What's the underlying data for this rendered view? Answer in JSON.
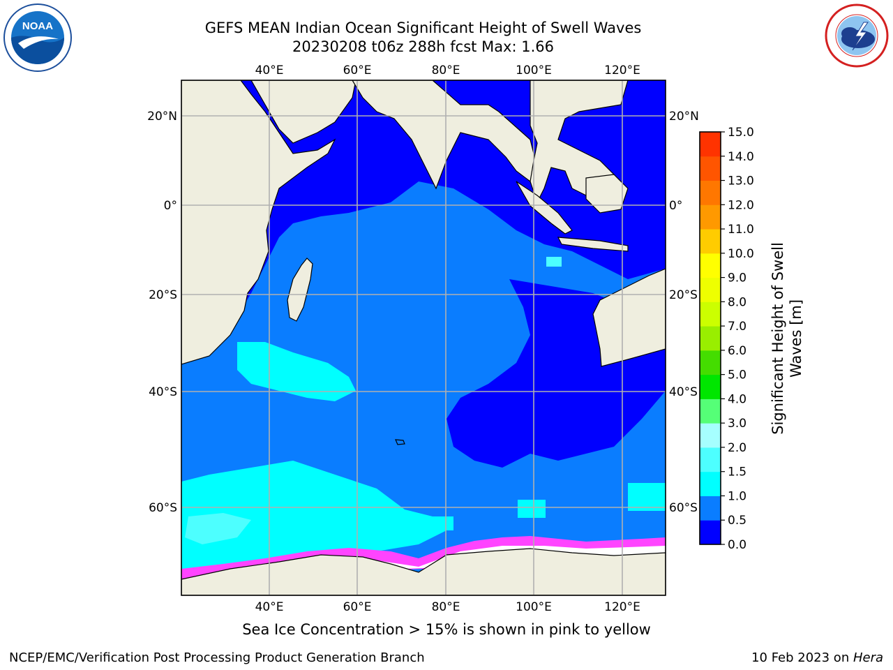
{
  "title": {
    "line1": "GEFS MEAN Indian Ocean Significant Height of Swell Waves",
    "line2": "20230208 t06z 288h fcst   Max: 1.66"
  },
  "map": {
    "lon_ticks": [
      "40°E",
      "60°E",
      "80°E",
      "100°E",
      "120°E"
    ],
    "lat_ticks": [
      "20°N",
      "0°",
      "20°S",
      "40°S",
      "60°S"
    ],
    "extent": {
      "lon": [
        20,
        130
      ],
      "lat": [
        -74,
        27
      ]
    },
    "colors": {
      "land": "#efeedf",
      "ocean_shallow": "#0000ff",
      "ocean_mid": "#0a7dff",
      "ocean_high": "#00ffff",
      "ocean_higher": "#4dffff",
      "ice": "#ff44ff",
      "grid": "#b0b0b0"
    }
  },
  "colorbar": {
    "label_line1": "Significant Height of Swell",
    "label_line2": "Waves [m]",
    "ticks": [
      "0.0",
      "0.5",
      "1.0",
      "1.5",
      "2.0",
      "3.0",
      "4.0",
      "5.0",
      "6.0",
      "7.0",
      "8.0",
      "9.0",
      "10.0",
      "11.0",
      "12.0",
      "13.0",
      "14.0",
      "15.0"
    ],
    "colors": [
      "#0000ff",
      "#0a7dff",
      "#00ffff",
      "#4dffff",
      "#a6ffff",
      "#55ff77",
      "#00e600",
      "#44dd00",
      "#99ee00",
      "#ccff00",
      "#eeff00",
      "#ffff00",
      "#ffcc00",
      "#ff9900",
      "#ff7700",
      "#ff5500",
      "#ff3300",
      "#ff0000"
    ]
  },
  "logos": {
    "left": {
      "text": "NOAA",
      "icon": "noaa-logo-icon"
    },
    "right": {
      "icon": "nws-logo-icon"
    }
  },
  "footer": {
    "note": "Sea Ice Concentration > 15% is shown in pink to yellow",
    "credit_left": "NCEP/EMC/Verification Post Processing Product Generation Branch",
    "credit_right_date": "10 Feb 2023 on ",
    "credit_right_host": "Hera"
  }
}
